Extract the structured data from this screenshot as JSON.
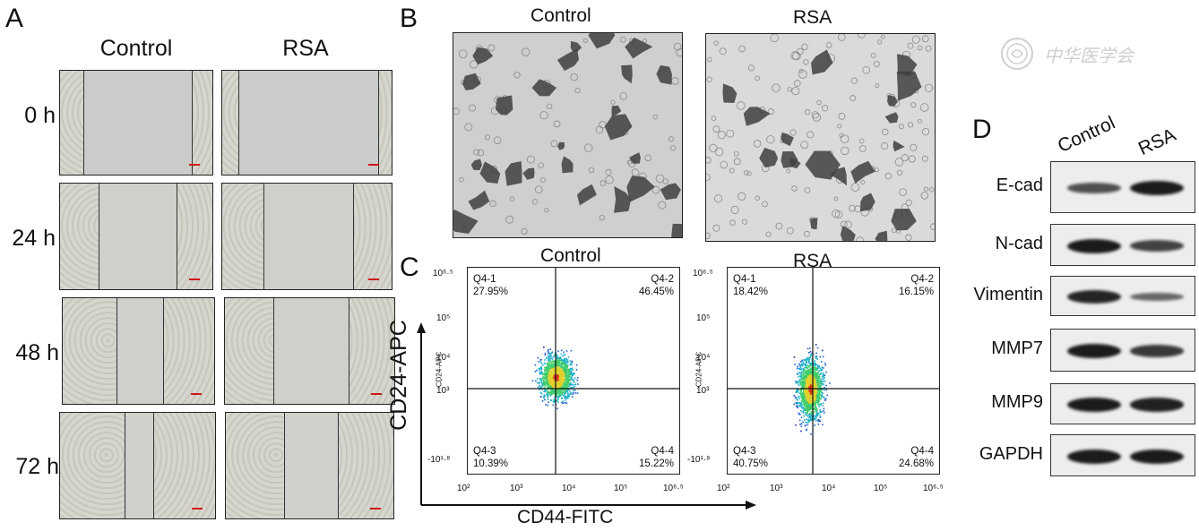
{
  "panel_a": {
    "letter": "A",
    "columns": [
      "Control",
      "RSA"
    ],
    "rows": [
      {
        "time": "0 h",
        "control_gap": 0.7,
        "rsa_gap": 0.81
      },
      {
        "time": "24 h",
        "control_gap": 0.5,
        "rsa_gap": 0.52
      },
      {
        "time": "48 h",
        "control_gap": 0.3,
        "rsa_gap": 0.43
      },
      {
        "time": "72 h",
        "control_gap": 0.18,
        "rsa_gap": 0.31
      }
    ]
  },
  "panel_b": {
    "letter": "B",
    "columns": [
      "Control",
      "RSA"
    ]
  },
  "panel_c": {
    "letter": "C",
    "y_axis_label": "CD24-APC",
    "x_axis_label": "CD44-FITC",
    "inner_y_label": "CD24-APC",
    "x_ticks": [
      "10²",
      "10³",
      "10⁴",
      "10⁵",
      "10⁶·⁵"
    ],
    "y_ticks": [
      "10⁶·⁵",
      "10⁵",
      "10⁴",
      "10³",
      "-10¹·⁸"
    ],
    "plots": [
      {
        "title": "Control",
        "quadrants": [
          {
            "name": "Q4-1",
            "value": "27.95%"
          },
          {
            "name": "Q4-2",
            "value": "46.45%"
          },
          {
            "name": "Q4-3",
            "value": "10.39%"
          },
          {
            "name": "Q4-4",
            "value": "15.22%"
          }
        ]
      },
      {
        "title": "RSA",
        "quadrants": [
          {
            "name": "Q4-1",
            "value": "18.42%"
          },
          {
            "name": "Q4-2",
            "value": "16.15%"
          },
          {
            "name": "Q4-3",
            "value": "40.75%"
          },
          {
            "name": "Q4-4",
            "value": "24.68%"
          }
        ]
      }
    ]
  },
  "panel_d": {
    "letter": "D",
    "lanes": [
      "Control",
      "RSA"
    ],
    "blots": [
      {
        "protein": "E-cad",
        "control": 0.55,
        "rsa": 1.0
      },
      {
        "protein": "N-cad",
        "control": 1.0,
        "rsa": 0.65
      },
      {
        "protein": "Vimentin",
        "control": 0.9,
        "rsa": 0.35
      },
      {
        "protein": "MMP7",
        "control": 1.0,
        "rsa": 0.75
      },
      {
        "protein": "MMP9",
        "control": 1.0,
        "rsa": 0.95
      },
      {
        "protein": "GAPDH",
        "control": 1.0,
        "rsa": 1.0
      }
    ]
  },
  "watermark": {
    "text": "中华医学会"
  }
}
